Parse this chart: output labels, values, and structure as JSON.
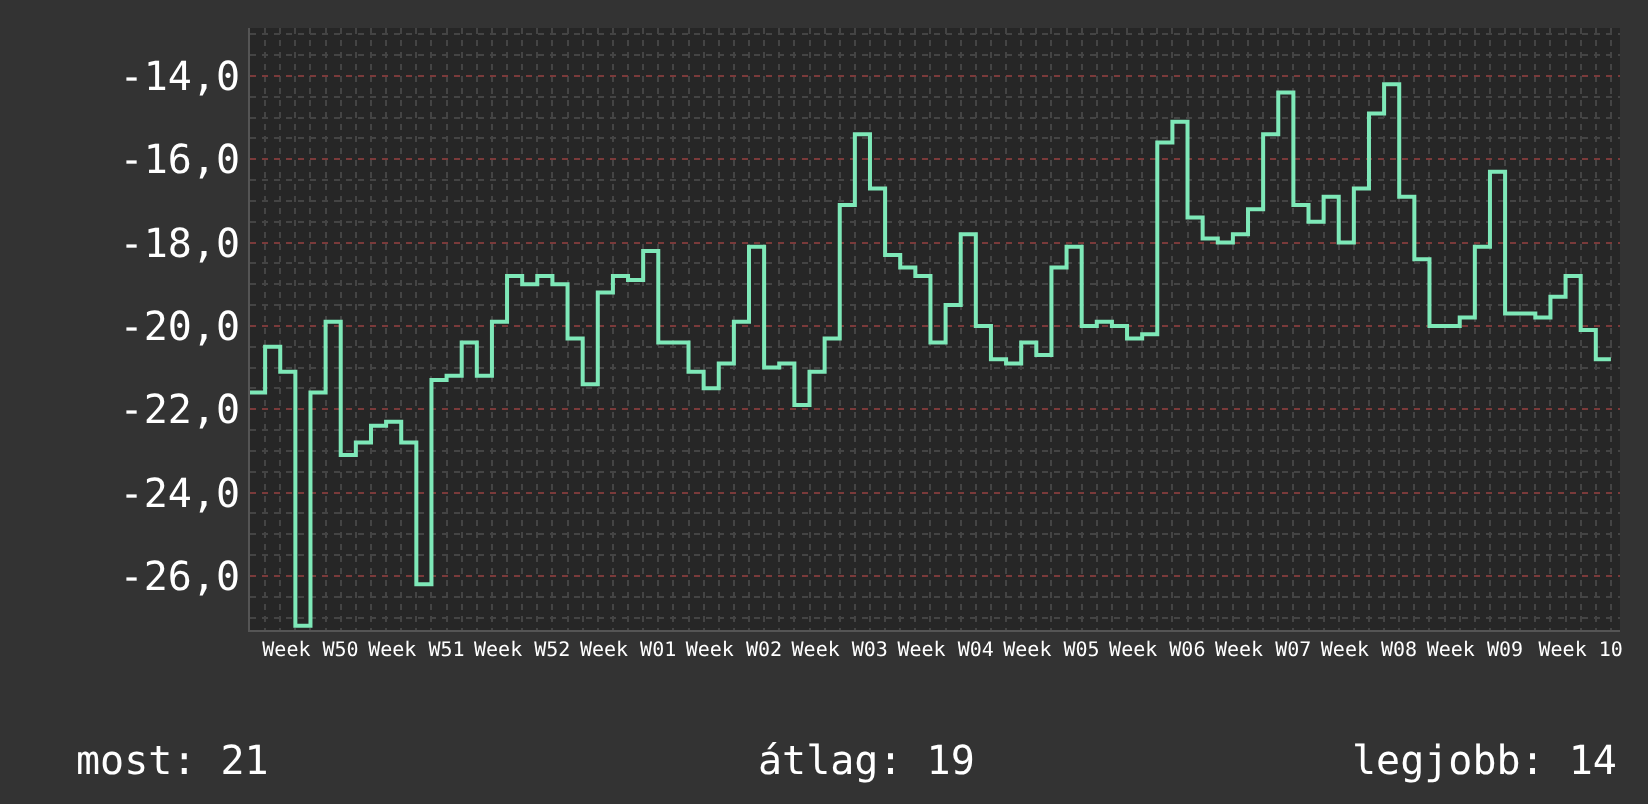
{
  "chart_data": {
    "type": "step",
    "categories": [
      null,
      null,
      null,
      null,
      "Week W50",
      null,
      null,
      null,
      null,
      null,
      null,
      "Week W51",
      null,
      null,
      null,
      null,
      null,
      null,
      "Week W52",
      null,
      null,
      null,
      null,
      null,
      null,
      "Week W01",
      null,
      null,
      null,
      null,
      null,
      null,
      "Week W02",
      null,
      null,
      null,
      null,
      null,
      null,
      "Week W03",
      null,
      null,
      null,
      null,
      null,
      null,
      "Week W04",
      null,
      null,
      null,
      null,
      null,
      null,
      "Week W05",
      null,
      null,
      null,
      null,
      null,
      null,
      "Week W06",
      null,
      null,
      null,
      null,
      null,
      null,
      "Week W07",
      null,
      null,
      null,
      null,
      null,
      null,
      "Week W08",
      null,
      null,
      null,
      null,
      null,
      null,
      "Week W09",
      null,
      null,
      null,
      null,
      null,
      null,
      "Week 10",
      null,
      null
    ],
    "values": [
      -21.6,
      -20.5,
      -21.1,
      -27.2,
      -21.6,
      -19.9,
      -23.1,
      -22.8,
      -22.4,
      -22.3,
      -22.8,
      -26.2,
      -21.3,
      -21.2,
      -20.4,
      -21.2,
      -19.9,
      -18.8,
      -19.0,
      -18.8,
      -19.0,
      -20.3,
      -21.4,
      -19.2,
      -18.8,
      -18.9,
      -18.2,
      -20.4,
      -20.4,
      -21.1,
      -21.5,
      -20.9,
      -19.9,
      -18.1,
      -21.0,
      -20.9,
      -21.9,
      -21.1,
      -20.3,
      -17.1,
      -15.4,
      -16.7,
      -18.3,
      -18.6,
      -18.8,
      -20.4,
      -19.5,
      -17.8,
      -20.0,
      -20.8,
      -20.9,
      -20.4,
      -20.7,
      -18.6,
      -18.1,
      -20.0,
      -19.9,
      -20.0,
      -20.3,
      -20.2,
      -15.6,
      -15.1,
      -17.4,
      -17.9,
      -18.0,
      -17.8,
      -17.2,
      -15.4,
      -14.4,
      -17.1,
      -17.5,
      -16.9,
      -18.0,
      -16.7,
      -14.9,
      -14.2,
      -16.9,
      -18.4,
      -20.0,
      -20.0,
      -19.8,
      -18.1,
      -16.3,
      -19.7,
      -19.7,
      -19.8,
      -19.3,
      -18.8,
      -20.1,
      -20.8,
      -20.8
    ],
    "color": "#7ee8b8",
    "ylim": [
      -27.3,
      -12.85
    ],
    "yticks": [
      {
        "value": -14,
        "label": "-14,0"
      },
      {
        "value": -16,
        "label": "-16,0"
      },
      {
        "value": -18,
        "label": "-18,0"
      },
      {
        "value": -20,
        "label": "-20,0"
      },
      {
        "value": -22,
        "label": "-22,0"
      },
      {
        "value": -24,
        "label": "-24,0"
      },
      {
        "value": -26,
        "label": "-26,0"
      }
    ],
    "grid": true,
    "annotations": [
      "most: 21",
      "átlag: 19",
      "legjobb: 14"
    ]
  }
}
